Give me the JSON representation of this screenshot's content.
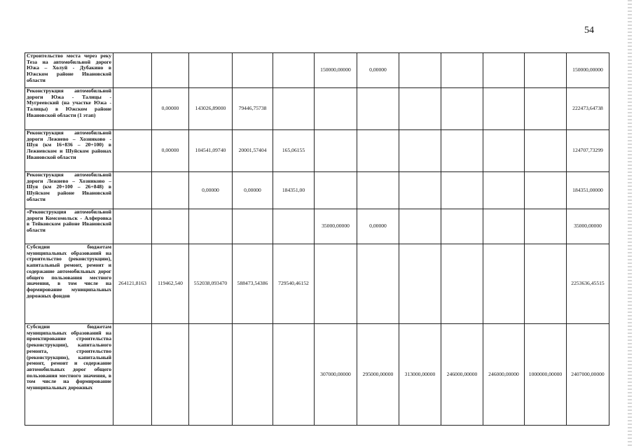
{
  "page_number": "54",
  "rows": [
    {
      "description": "Строительство моста через реку Теза на автомобильной дороге Южа – Холуй - Дубакино в Южском районе Ивановской области",
      "values": [
        "",
        "",
        "",
        "",
        "",
        "150000,00000",
        "0,00000",
        "",
        "",
        "",
        "",
        "150000,00000"
      ]
    },
    {
      "description": "Реконструкция автомобильной дороги Южа - Талицы - Мугреевский (на участке Южа - Талицы) в Южском районе Ивановской области (1 этап)",
      "values": [
        "",
        "0,00000",
        "143026,89000",
        "79446,75738",
        "",
        "",
        "",
        "",
        "",
        "",
        "",
        "222473,64738"
      ]
    },
    {
      "description": "Реконструкция автомобильной дороги Лежнево – Хозниково - Шуя (км 16+836 – 20+100) в Лежневском и Шуйском районах Ивановской области",
      "values": [
        "",
        "0,00000",
        "104541,09740",
        "20001,57404",
        "165,06155",
        "",
        "",
        "",
        "",
        "",
        "",
        "124707,73299"
      ]
    },
    {
      "description": "Реконструкция автомобильной дороги Лежнево – Хозниково – Шуя (км 20+100 – 26+848) в Шуйском районе Ивановской области",
      "values": [
        "",
        "",
        "0,00000",
        "0,00000",
        "184351,00",
        "",
        "",
        "",
        "",
        "",
        "",
        "184351,00000"
      ]
    },
    {
      "description": "«Реконструкция автомобильной дороги Комсомольск - Алферовка в Тейковском районе Ивановской области",
      "values": [
        "",
        "",
        "",
        "",
        "",
        "35000,00000",
        "0,00000",
        "",
        "",
        "",
        "",
        "35000,00000"
      ]
    },
    {
      "description": "Субсидии бюджетам муниципальных образований на строительство (реконструкцию), капитальный ремонт, ремонт и содержание автомобильных дорог общего пользования местного значения, в том числе на формирование муниципальных дорожных фондов",
      "values": [
        "264121,8163",
        "119462,540",
        "552038,093470",
        "588473,54386",
        "729540,46152",
        "",
        "",
        "",
        "",
        "",
        "",
        "2253636,45515"
      ]
    },
    {
      "description": "Субсидии бюджетам муниципальных образований на проектирование строительства (реконструкции), капитального ремонта, строительство (реконструкцию), капитальный ремонт, ремонт и содержание автомобильных дорог общего пользования местного значения, в том числе на формирование муниципальных дорожных",
      "values": [
        "",
        "",
        "",
        "",
        "",
        "307000,00000",
        "295000,00000",
        "313000,00000",
        "246000,00000",
        "246000,00000",
        "1000000,00000",
        "2407000,00000"
      ]
    }
  ]
}
